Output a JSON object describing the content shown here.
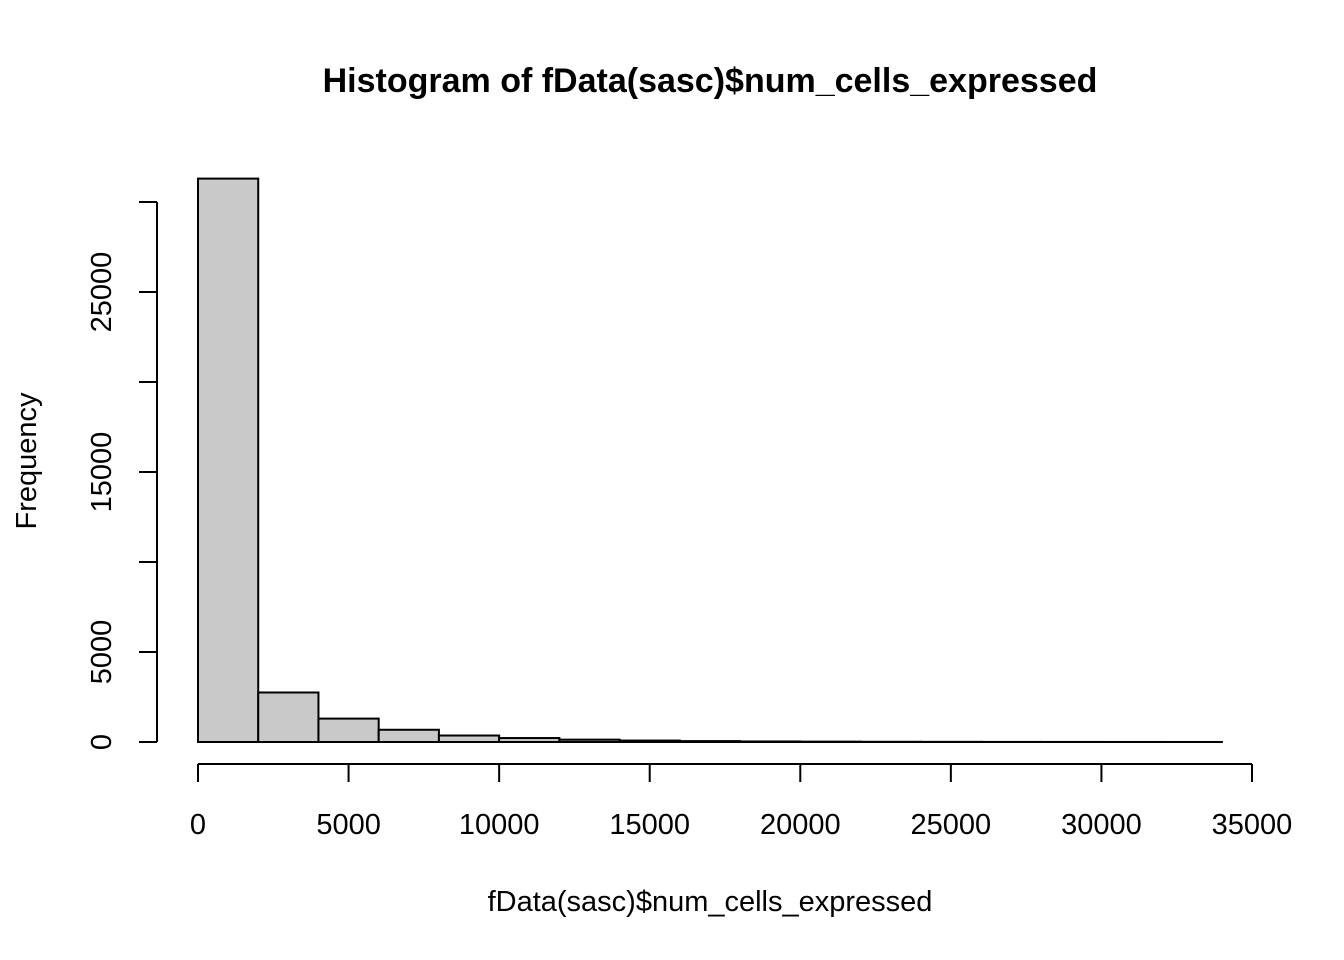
{
  "chart_data": {
    "type": "bar",
    "title": "Histogram of fData(sasc)$num_cells_expressed",
    "xlabel": "fData(sasc)$num_cells_expressed",
    "ylabel": "Frequency",
    "bin_edges": [
      0,
      2000,
      4000,
      6000,
      8000,
      10000,
      12000,
      14000,
      16000,
      18000,
      20000,
      22000,
      24000,
      26000,
      28000,
      30000,
      32000,
      34000
    ],
    "values": [
      31300,
      2750,
      1300,
      680,
      360,
      220,
      130,
      80,
      50,
      30,
      20,
      12,
      8,
      5,
      4,
      3,
      2
    ],
    "xlim": [
      0,
      35000
    ],
    "ylim": [
      0,
      30000
    ],
    "x_ticks": [
      0,
      5000,
      10000,
      15000,
      20000,
      25000,
      30000,
      35000
    ],
    "x_tick_labels": [
      "0",
      "5000",
      "10000",
      "15000",
      "20000",
      "25000",
      "30000",
      "35000"
    ],
    "y_ticks": [
      0,
      5000,
      10000,
      15000,
      20000,
      25000,
      30000
    ],
    "y_tick_labels": [
      "0",
      "5000",
      "",
      "15000",
      "",
      "25000",
      ""
    ],
    "grid": false,
    "legend": "none",
    "bar_color": "#c9c9c9"
  }
}
